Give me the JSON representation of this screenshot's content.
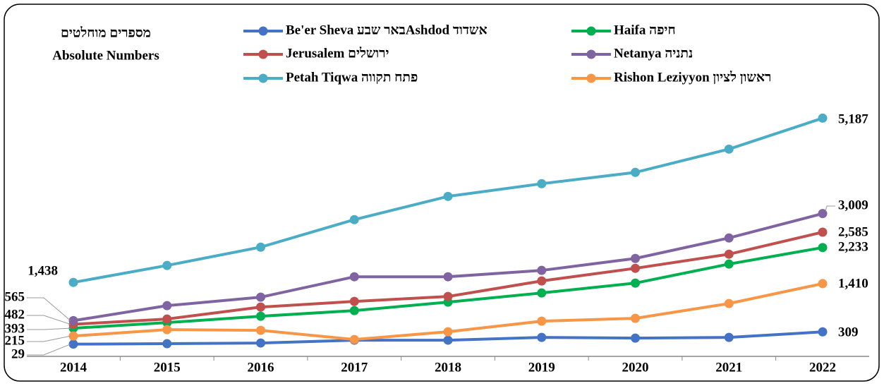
{
  "chart_data": {
    "type": "line",
    "title": [
      "מספרים מוחלטים",
      "Absolute Numbers"
    ],
    "categories": [
      "2014",
      "2015",
      "2016",
      "2017",
      "2018",
      "2019",
      "2020",
      "2021",
      "2022"
    ],
    "ylim": [
      -250,
      5500
    ],
    "legend": "top",
    "series": [
      {
        "name": "Be'er Sheva באר שבעAshdod  אשדוד",
        "color": "#4472c4",
        "values": [
          29,
          39,
          55,
          119,
          119,
          183,
          167,
          183,
          309
        ],
        "value_labels": [
          "29",
          null,
          null,
          null,
          null,
          null,
          null,
          null,
          "309"
        ]
      },
      {
        "name": "Haifa חיפה",
        "color": "#00b050",
        "values": [
          393,
          521,
          666,
          795,
          988,
          1197,
          1422,
          1857,
          2233
        ],
        "value_labels": [
          "393",
          null,
          null,
          null,
          null,
          null,
          null,
          null,
          "2,233"
        ]
      },
      {
        "name": "Jerusalem ירושלים",
        "color": "#c0504d",
        "values": [
          482,
          602,
          875,
          1004,
          1117,
          1471,
          1760,
          2082,
          2585
        ],
        "value_labels": [
          "482",
          null,
          null,
          null,
          null,
          null,
          null,
          null,
          "2,585"
        ]
      },
      {
        "name": "Netanya נתניה",
        "color": "#8064a2",
        "values": [
          565,
          907,
          1101,
          1567,
          1567,
          1712,
          1985,
          2452,
          3009
        ],
        "value_labels": [
          "565",
          null,
          null,
          null,
          null,
          null,
          null,
          null,
          "3,009"
        ]
      },
      {
        "name": "Petah Tiqwa פתח תקווה",
        "color": "#4bacc6",
        "values": [
          1438,
          1825,
          2243,
          2871,
          3401,
          3691,
          3949,
          4480,
          5187
        ],
        "value_labels": [
          "1,438",
          null,
          null,
          null,
          null,
          null,
          null,
          null,
          "5,187"
        ]
      },
      {
        "name": "Rishon Leziyyon ראשון לציון",
        "color": "#f79646",
        "values": [
          215,
          360,
          344,
          135,
          312,
          553,
          618,
          956,
          1410
        ],
        "value_labels": [
          "215",
          null,
          null,
          null,
          null,
          null,
          null,
          null,
          "1,410"
        ]
      }
    ]
  }
}
